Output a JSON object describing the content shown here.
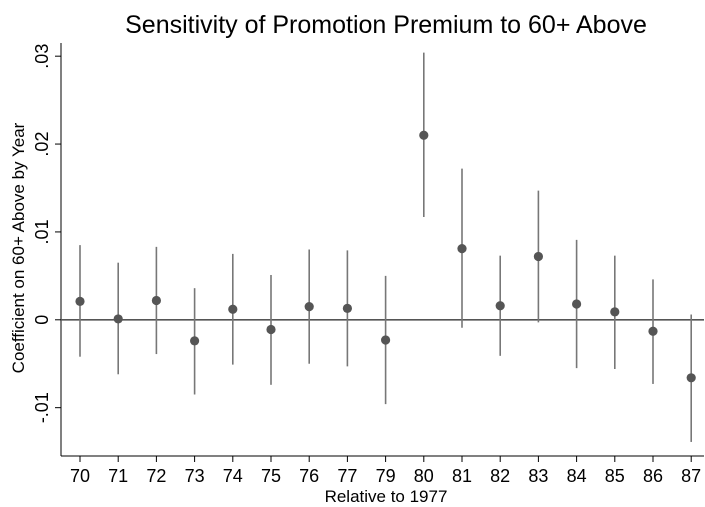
{
  "chart_data": {
    "type": "scatter",
    "title": "Sensitivity of Promotion Premium to 60+ Above",
    "xlabel": "Relative to 1977",
    "ylabel": "Coefficient on 60+ Above by Year",
    "categories": [
      "70",
      "71",
      "72",
      "73",
      "74",
      "75",
      "76",
      "77",
      "79",
      "80",
      "81",
      "82",
      "83",
      "84",
      "85",
      "86",
      "87"
    ],
    "series": [
      {
        "values": [
          0.0021,
          0.0001,
          0.0022,
          -0.0024,
          0.0012,
          -0.0011,
          0.0015,
          0.0013,
          -0.0023,
          0.021,
          0.0081,
          0.0016,
          0.0072,
          0.0018,
          0.0009,
          -0.0013,
          -0.0066
        ],
        "ci_low": [
          -0.0042,
          -0.0062,
          -0.0039,
          -0.0085,
          -0.0051,
          -0.0074,
          -0.005,
          -0.0053,
          -0.0096,
          0.0117,
          -0.0009,
          -0.0041,
          -0.0003,
          -0.0055,
          -0.0056,
          -0.0073,
          -0.0139
        ],
        "ci_high": [
          0.0085,
          0.0065,
          0.0083,
          0.0036,
          0.0075,
          0.0051,
          0.008,
          0.0079,
          0.005,
          0.0304,
          0.0172,
          0.0073,
          0.0147,
          0.0091,
          0.0073,
          0.0046,
          0.0006
        ]
      }
    ],
    "yticks": [
      -0.01,
      0,
      0.01,
      0.02,
      0.03
    ],
    "ytick_labels": [
      "-.01",
      "0",
      ".01",
      ".02",
      ".03"
    ],
    "ylim": [
      -0.0155,
      0.0315
    ],
    "reference_line": 0,
    "grid": false,
    "colors": {
      "marker": "#555555",
      "ci": "#777777",
      "zero_line": "#555555",
      "axis": "#000000"
    }
  }
}
